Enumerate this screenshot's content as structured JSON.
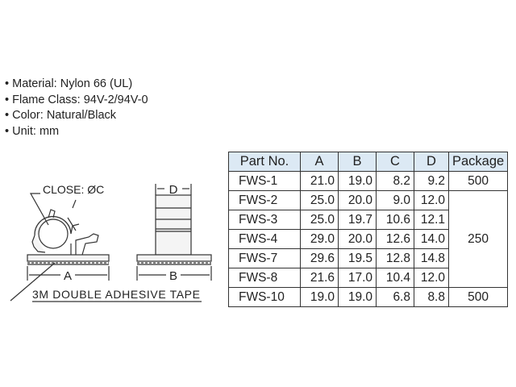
{
  "specs": [
    "Material: Nylon 66 (UL)",
    "Flame Class: 94V-2/94V-0",
    "Color: Natural/Black",
    "Unit: mm"
  ],
  "drawing": {
    "close_label": "CLOSE: ØC",
    "a_label": "A",
    "b_label": "B",
    "d_label": "D",
    "tape_label": "3M DOUBLE ADHESIVE TAPE"
  },
  "table": {
    "headers": [
      "Part No.",
      "A",
      "B",
      "C",
      "D",
      "Package"
    ],
    "rows": [
      [
        "FWS-1",
        "21.0",
        "19.0",
        "8.2",
        "9.2"
      ],
      [
        "FWS-2",
        "25.0",
        "20.0",
        "9.0",
        "12.0"
      ],
      [
        "FWS-3",
        "25.0",
        "19.7",
        "10.6",
        "12.1"
      ],
      [
        "FWS-4",
        "29.0",
        "20.0",
        "12.6",
        "14.0"
      ],
      [
        "FWS-7",
        "29.6",
        "19.5",
        "12.8",
        "14.8"
      ],
      [
        "FWS-8",
        "21.6",
        "17.0",
        "10.4",
        "12.0"
      ],
      [
        "FWS-10",
        "19.0",
        "19.0",
        "6.8",
        "8.8"
      ]
    ],
    "packages": [
      "500",
      "250",
      "500"
    ],
    "header_color": "#dce9f4"
  }
}
